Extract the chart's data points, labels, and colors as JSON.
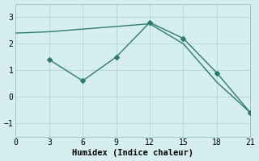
{
  "line1_x": [
    0,
    3,
    6,
    9,
    12,
    15,
    18,
    21
  ],
  "line1_y": [
    2.4,
    2.45,
    2.55,
    2.65,
    2.75,
    2.0,
    0.55,
    -0.6
  ],
  "line2_x": [
    3,
    6,
    9,
    12,
    15,
    18,
    21
  ],
  "line2_y": [
    1.4,
    0.6,
    1.5,
    2.8,
    2.2,
    0.9,
    -0.6
  ],
  "line_color": "#2a7a70",
  "bg_color": "#d6efee",
  "xlabel": "Humidex (Indice chaleur)",
  "xlim": [
    0,
    21
  ],
  "ylim": [
    -1.5,
    3.5
  ],
  "xticks": [
    0,
    3,
    6,
    9,
    12,
    15,
    18,
    21
  ],
  "yticks": [
    -1,
    0,
    1,
    2,
    3
  ],
  "grid_color": "#b8d8d5"
}
